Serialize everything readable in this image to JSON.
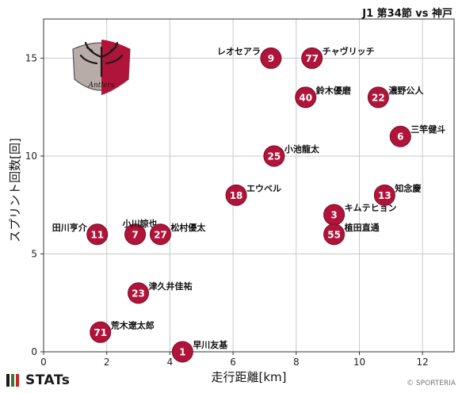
{
  "header": {
    "match_title": "J1 第34節 vs 神戸"
  },
  "footer": {
    "brand": "STATs",
    "copyright": "© SPORTERIA"
  },
  "colors": {
    "marker": "#b0143a",
    "marker_edge": "#7a0d27",
    "grid": "#c8c8c8",
    "logo_bar_1": "#1a1a1a",
    "logo_bar_2": "#2e7d32",
    "logo_bar_3": "#c62828"
  },
  "icons": {
    "team_crest": "kashima-antlers-crest-icon"
  },
  "chart_data": {
    "type": "scatter",
    "xlabel": "走行距離[km]",
    "ylabel": "スプリント回数[回]",
    "xlim": [
      0,
      13
    ],
    "ylim": [
      0,
      17
    ],
    "xticks": [
      0,
      2,
      4,
      6,
      8,
      10,
      12
    ],
    "yticks": [
      0,
      5,
      10,
      15
    ],
    "grid": true,
    "points": [
      {
        "number": "9",
        "name": "レオセアラ",
        "x": 7.2,
        "y": 15,
        "label_side": "left"
      },
      {
        "number": "77",
        "name": "チャヴリッチ",
        "x": 8.5,
        "y": 15,
        "label_side": "right"
      },
      {
        "number": "40",
        "name": "鈴木優磨",
        "x": 8.3,
        "y": 13,
        "label_side": "right"
      },
      {
        "number": "22",
        "name": "濃野公人",
        "x": 10.6,
        "y": 13,
        "label_side": "right"
      },
      {
        "number": "6",
        "name": "三竿健斗",
        "x": 11.3,
        "y": 11,
        "label_side": "right"
      },
      {
        "number": "25",
        "name": "小池龍太",
        "x": 7.3,
        "y": 10,
        "label_side": "right"
      },
      {
        "number": "18",
        "name": "エウベル",
        "x": 6.1,
        "y": 8,
        "label_side": "right"
      },
      {
        "number": "13",
        "name": "知念慶",
        "x": 10.8,
        "y": 8,
        "label_side": "right"
      },
      {
        "number": "3",
        "name": "キムテヒョン",
        "x": 9.2,
        "y": 7,
        "label_side": "right"
      },
      {
        "number": "55",
        "name": "植田直通",
        "x": 9.2,
        "y": 6,
        "label_side": "right"
      },
      {
        "number": "11",
        "name": "田川亨介",
        "x": 1.7,
        "y": 6,
        "label_side": "left"
      },
      {
        "number": "7",
        "name": "小川諒也",
        "x": 2.9,
        "y": 6,
        "label_side": "above"
      },
      {
        "number": "27",
        "name": "松村優太",
        "x": 3.7,
        "y": 6,
        "label_side": "right"
      },
      {
        "number": "23",
        "name": "津久井佳祐",
        "x": 3.0,
        "y": 3,
        "label_side": "right"
      },
      {
        "number": "71",
        "name": "荒木遼太郎",
        "x": 1.8,
        "y": 1,
        "label_side": "right"
      },
      {
        "number": "1",
        "name": "早川友基",
        "x": 4.4,
        "y": 0,
        "label_side": "right"
      }
    ]
  }
}
